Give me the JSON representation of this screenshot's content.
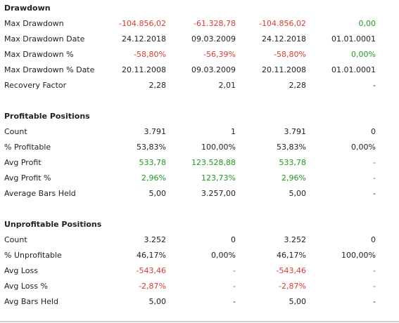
{
  "sections": [
    {
      "title": "Drawdown",
      "rows": [
        {
          "label": "Max Drawdown",
          "values": [
            "-104.856,02",
            "-61.328,78",
            "-104.856,02",
            "0,00"
          ],
          "colors": [
            "#e03a2f",
            "#e03a2f",
            "#e03a2f",
            "#1e9a1e"
          ]
        },
        {
          "label": "Max Drawdown Date",
          "values": [
            "24.12.2018",
            "09.03.2009",
            "24.12.2018",
            "01.01.0001"
          ],
          "colors": [
            "#222222",
            "#222222",
            "#222222",
            "#222222"
          ]
        },
        {
          "label": "Max Drawdown %",
          "values": [
            "-58,80%",
            "-56,39%",
            "-58,80%",
            "0,00%"
          ],
          "colors": [
            "#e03a2f",
            "#e03a2f",
            "#e03a2f",
            "#1e9a1e"
          ]
        },
        {
          "label": "Max Drawdown % Date",
          "values": [
            "20.11.2008",
            "09.03.2009",
            "20.11.2008",
            "01.01.0001"
          ],
          "colors": [
            "#222222",
            "#222222",
            "#222222",
            "#222222"
          ]
        },
        {
          "label": "Recovery Factor",
          "values": [
            "2,28",
            "2,01",
            "2,28",
            "-"
          ],
          "colors": [
            "#222222",
            "#222222",
            "#222222",
            "#222222"
          ]
        }
      ]
    },
    {
      "title": "Profitable Positions",
      "rows": [
        {
          "label": "Count",
          "values": [
            "3.791",
            "1",
            "3.791",
            "0"
          ],
          "colors": [
            "#222222",
            "#222222",
            "#222222",
            "#222222"
          ]
        },
        {
          "label": "% Profitable",
          "values": [
            "53,83%",
            "100,00%",
            "53,83%",
            "0,00%"
          ],
          "colors": [
            "#222222",
            "#222222",
            "#222222",
            "#222222"
          ]
        },
        {
          "label": "Avg Profit",
          "values": [
            "533,78",
            "123.528,88",
            "533,78",
            "-"
          ],
          "colors": [
            "#1e9a1e",
            "#1e9a1e",
            "#1e9a1e",
            "#e03a2f"
          ]
        },
        {
          "label": "Avg Profit %",
          "values": [
            "2,96%",
            "123,73%",
            "2,96%",
            "-"
          ],
          "colors": [
            "#1e9a1e",
            "#1e9a1e",
            "#1e9a1e",
            "#e03a2f"
          ]
        },
        {
          "label": "Average Bars Held",
          "values": [
            "5,00",
            "3.257,00",
            "5,00",
            "-"
          ],
          "colors": [
            "#222222",
            "#222222",
            "#222222",
            "#222222"
          ]
        }
      ]
    },
    {
      "title": "Unprofitable Positions",
      "rows": [
        {
          "label": "Count",
          "values": [
            "3.252",
            "0",
            "3.252",
            "0"
          ],
          "colors": [
            "#222222",
            "#222222",
            "#222222",
            "#222222"
          ]
        },
        {
          "label": "% Unprofitable",
          "values": [
            "46,17%",
            "0,00%",
            "46,17%",
            "100,00%"
          ],
          "colors": [
            "#222222",
            "#222222",
            "#222222",
            "#222222"
          ]
        },
        {
          "label": "Avg Loss",
          "values": [
            "-543,46",
            "-",
            "-543,46",
            "-"
          ],
          "colors": [
            "#e03a2f",
            "#e03a2f",
            "#e03a2f",
            "#e03a2f"
          ]
        },
        {
          "label": "Avg Loss %",
          "values": [
            "-2,87%",
            "-",
            "-2,87%",
            "-"
          ],
          "colors": [
            "#e03a2f",
            "#e03a2f",
            "#e03a2f",
            "#e03a2f"
          ]
        },
        {
          "label": "Avg Bars Held",
          "values": [
            "5,00",
            "-",
            "5,00",
            "-"
          ],
          "colors": [
            "#222222",
            "#222222",
            "#222222",
            "#222222"
          ]
        }
      ]
    }
  ]
}
